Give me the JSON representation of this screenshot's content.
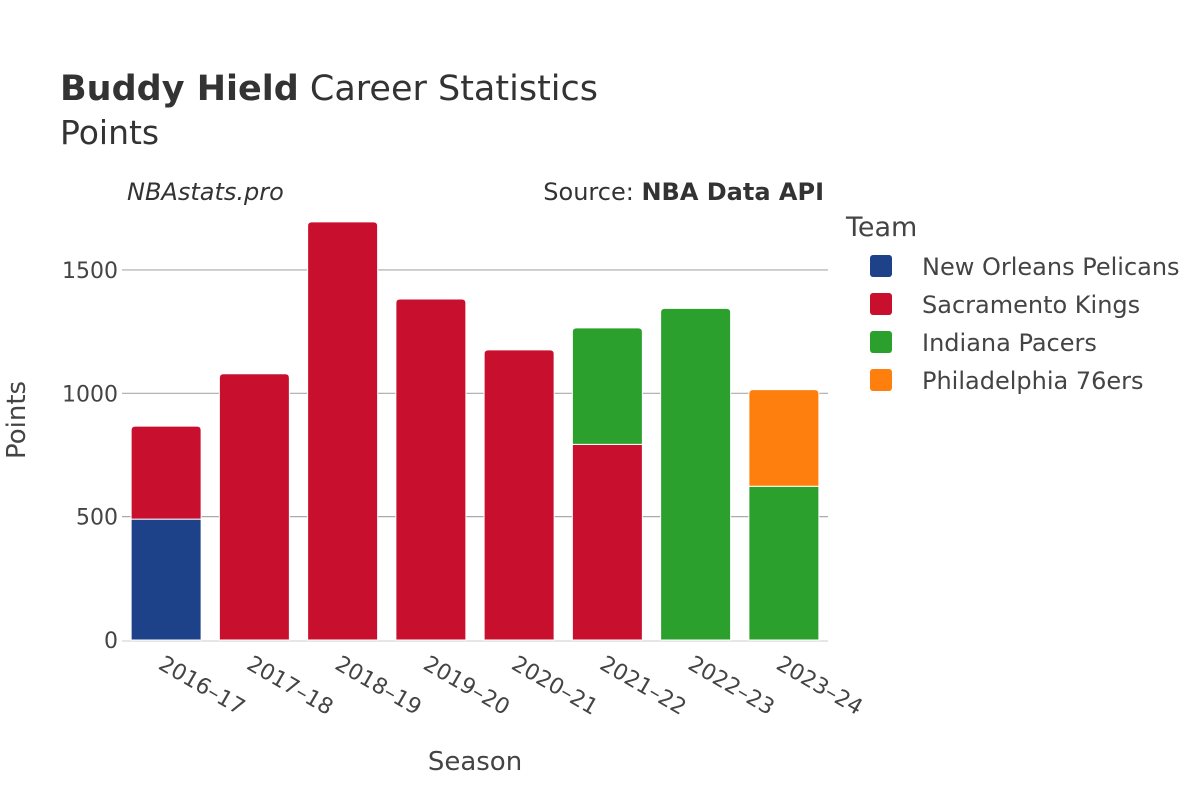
{
  "chart_data": {
    "type": "bar",
    "stacked": true,
    "title_bold": "Buddy Hield",
    "title_rest": " Career Statistics",
    "subtitle": "Points",
    "watermark": "NBAstats.pro",
    "source_prefix": "Source: ",
    "source_name": "NBA Data API",
    "xlabel": "Season",
    "ylabel": "Points",
    "ylim": [
      0,
      1700
    ],
    "yticks": [
      0,
      500,
      1000,
      1500
    ],
    "ytick_labels": [
      "0",
      "500",
      "1000",
      "1500"
    ],
    "grid": true,
    "legend_title": "Team",
    "legend_position": "right",
    "categories": [
      "2016–17",
      "2017–18",
      "2018–19",
      "2019–20",
      "2020–21",
      "2021–22",
      "2022–23",
      "2023–24"
    ],
    "series": [
      {
        "name": "New Orleans Pelicans",
        "color": "#1d428a",
        "values": [
          490,
          0,
          0,
          0,
          0,
          0,
          0,
          0
        ]
      },
      {
        "name": "Sacramento Kings",
        "color": "#c8102e",
        "values": [
          377,
          1079,
          1695,
          1382,
          1176,
          793,
          0,
          0
        ]
      },
      {
        "name": "Indiana Pacers",
        "color": "#2ca02c",
        "values": [
          0,
          0,
          0,
          0,
          0,
          472,
          1344,
          623
        ]
      },
      {
        "name": "Philadelphia 76ers",
        "color": "#ff7f0e",
        "values": [
          0,
          0,
          0,
          0,
          0,
          0,
          0,
          392
        ]
      }
    ]
  }
}
